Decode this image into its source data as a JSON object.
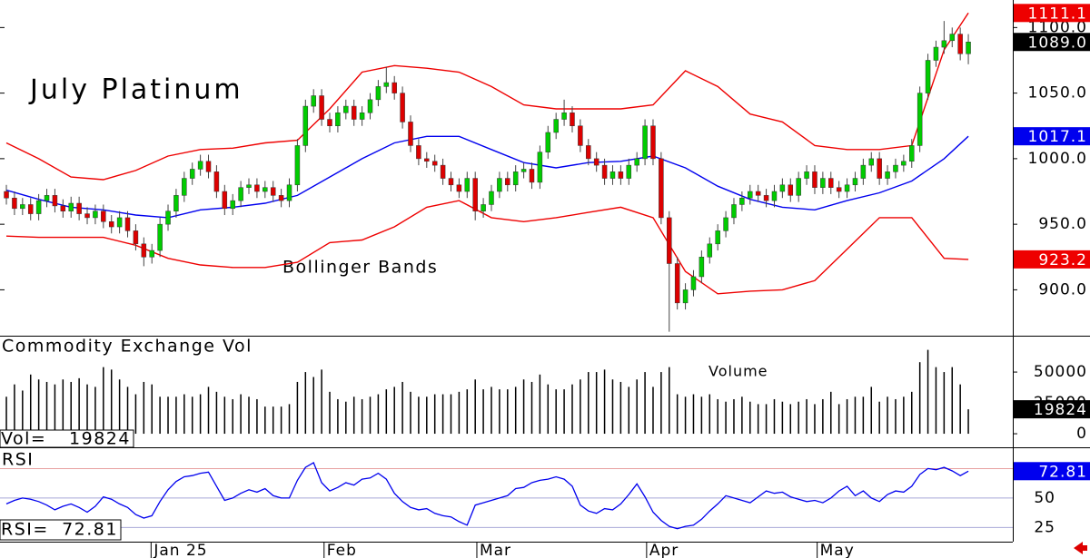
{
  "chart_data": [
    {
      "type": "candlestick",
      "title": "July Platinum",
      "annotation": "Bollinger Bands",
      "x": [
        0,
        1,
        2,
        3,
        4,
        5,
        6,
        7,
        8,
        9,
        10,
        11,
        12,
        13,
        14,
        15,
        16,
        17,
        18,
        19,
        20,
        21,
        22,
        23,
        24,
        25,
        26,
        27,
        28,
        29,
        30,
        31,
        32,
        33,
        34,
        35,
        36,
        37,
        38,
        39,
        40,
        41,
        42,
        43,
        44,
        45,
        46,
        47,
        48,
        49,
        50,
        51,
        52,
        53,
        54,
        55,
        56,
        57,
        58,
        59,
        60,
        61,
        62,
        63,
        64,
        65,
        66,
        67,
        68,
        69,
        70,
        71,
        72,
        73,
        74,
        75,
        76,
        77,
        78,
        79,
        80,
        81,
        82,
        83,
        84,
        85,
        86,
        87,
        88,
        89,
        90,
        91,
        92,
        93,
        94,
        95,
        96,
        97,
        98,
        99,
        100,
        101,
        102,
        103,
        104,
        105,
        106,
        107,
        108,
        109,
        110,
        111,
        112,
        113,
        114,
        115,
        116,
        117,
        118,
        119
      ],
      "open": [
        975,
        970,
        962,
        965,
        958,
        968,
        972,
        964,
        960,
        966,
        958,
        955,
        960,
        952,
        948,
        955,
        945,
        935,
        925,
        930,
        950,
        960,
        972,
        985,
        992,
        998,
        990,
        975,
        962,
        968,
        978,
        980,
        975,
        978,
        972,
        968,
        980,
        1010,
        1040,
        1048,
        1030,
        1025,
        1035,
        1040,
        1030,
        1035,
        1045,
        1055,
        1058,
        1050,
        1028,
        1010,
        1000,
        998,
        995,
        985,
        980,
        975,
        985,
        960,
        965,
        975,
        985,
        980,
        990,
        992,
        982,
        1005,
        1020,
        1030,
        1035,
        1025,
        1010,
        1000,
        995,
        985,
        990,
        985,
        995,
        1000,
        1025,
        1000,
        955,
        920,
        890,
        900,
        910,
        925,
        935,
        945,
        955,
        965,
        970,
        975,
        972,
        968,
        975,
        980,
        972,
        985,
        990,
        978,
        985,
        978,
        975,
        980,
        985,
        995,
        1000,
        985,
        990,
        995,
        998,
        1010,
        1050,
        1075,
        1085,
        1090,
        1095,
        1080
      ],
      "high": [
        980,
        975,
        970,
        970,
        973,
        977,
        977,
        969,
        971,
        971,
        963,
        965,
        965,
        957,
        960,
        960,
        950,
        940,
        935,
        955,
        965,
        977,
        990,
        997,
        1003,
        1003,
        995,
        980,
        973,
        983,
        985,
        985,
        983,
        983,
        977,
        985,
        1015,
        1045,
        1053,
        1053,
        1035,
        1040,
        1045,
        1045,
        1040,
        1050,
        1060,
        1070,
        1063,
        1055,
        1033,
        1015,
        1005,
        1003,
        1000,
        990,
        985,
        990,
        990,
        970,
        980,
        990,
        990,
        995,
        997,
        997,
        1010,
        1025,
        1035,
        1045,
        1040,
        1030,
        1015,
        1005,
        1000,
        995,
        995,
        1000,
        1005,
        1030,
        1030,
        1005,
        960,
        925,
        905,
        915,
        930,
        940,
        950,
        960,
        970,
        975,
        980,
        980,
        977,
        980,
        985,
        985,
        990,
        995,
        995,
        990,
        990,
        983,
        985,
        990,
        1000,
        1005,
        1005,
        995,
        1000,
        1003,
        1015,
        1055,
        1080,
        1090,
        1105,
        1100,
        1100,
        1095
      ],
      "low": [
        965,
        957,
        957,
        953,
        953,
        963,
        959,
        955,
        955,
        953,
        950,
        950,
        947,
        943,
        943,
        940,
        930,
        918,
        920,
        925,
        945,
        955,
        967,
        980,
        987,
        985,
        970,
        957,
        957,
        963,
        973,
        970,
        970,
        967,
        963,
        963,
        975,
        1005,
        1035,
        1025,
        1020,
        1020,
        1030,
        1025,
        1025,
        1030,
        1040,
        1050,
        1045,
        1023,
        1005,
        995,
        993,
        990,
        980,
        975,
        970,
        970,
        953,
        955,
        960,
        970,
        975,
        975,
        985,
        977,
        977,
        1000,
        1015,
        1025,
        1020,
        1005,
        995,
        990,
        980,
        980,
        980,
        980,
        990,
        995,
        995,
        950,
        868,
        885,
        885,
        895,
        905,
        920,
        930,
        940,
        950,
        960,
        965,
        967,
        963,
        963,
        970,
        967,
        967,
        980,
        973,
        973,
        973,
        970,
        970,
        975,
        980,
        990,
        980,
        980,
        985,
        990,
        993,
        1005,
        1045,
        1070,
        1080,
        1085,
        1075,
        1072
      ],
      "close": [
        970,
        962,
        965,
        958,
        968,
        972,
        964,
        960,
        966,
        958,
        955,
        960,
        952,
        948,
        955,
        945,
        935,
        925,
        930,
        950,
        960,
        972,
        985,
        992,
        998,
        990,
        975,
        962,
        968,
        978,
        980,
        975,
        978,
        972,
        968,
        980,
        1010,
        1040,
        1048,
        1030,
        1025,
        1035,
        1040,
        1030,
        1035,
        1045,
        1055,
        1058,
        1050,
        1028,
        1010,
        1000,
        998,
        995,
        985,
        980,
        975,
        985,
        960,
        965,
        975,
        985,
        980,
        990,
        992,
        982,
        1005,
        1020,
        1030,
        1035,
        1025,
        1010,
        1000,
        995,
        985,
        990,
        985,
        995,
        1000,
        1025,
        1000,
        955,
        920,
        890,
        900,
        910,
        925,
        935,
        945,
        955,
        965,
        970,
        975,
        972,
        968,
        975,
        980,
        972,
        985,
        990,
        978,
        985,
        978,
        975,
        980,
        985,
        995,
        1000,
        985,
        990,
        995,
        998,
        1010,
        1050,
        1075,
        1085,
        1090,
        1095,
        1080,
        1089
      ],
      "close_label": "1089.0",
      "up_color": "#00cc00",
      "down_color": "#dd0000",
      "xlim": [
        -0.79,
        124.5
      ],
      "ylim": [
        865,
        1121
      ],
      "yticks": [
        {
          "value": 900,
          "label": "900.0"
        },
        {
          "value": 950,
          "label": "950.0"
        },
        {
          "value": 1000,
          "label": "1000.0"
        },
        {
          "value": 1050,
          "label": "1050.0"
        },
        {
          "value": 1100,
          "label": "1100.0"
        }
      ],
      "bands": {
        "x": [
          0,
          4,
          8,
          12,
          16,
          20,
          24,
          28,
          32,
          36,
          40,
          44,
          48,
          52,
          56,
          60,
          64,
          68,
          72,
          76,
          80,
          84,
          88,
          92,
          96,
          100,
          104,
          108,
          112,
          116,
          119
        ],
        "series": [
          {
            "color": "#ee0000",
            "values": [
              1012,
              1000,
              986,
              984,
              991,
              1002,
              1007,
              1008,
              1012,
              1014,
              1038,
              1066,
              1071,
              1069,
              1066,
              1055,
              1041,
              1038,
              1038,
              1038,
              1041,
              1067,
              1055,
              1034,
              1028,
              1010,
              1007,
              1007,
              1010,
              1083,
              1111.1
            ]
          },
          {
            "color": "#0000ee",
            "values": [
              976,
              969,
              963,
              961,
              957,
              955,
              961,
              963,
              966,
              972,
              986,
              1000,
              1012,
              1017,
              1017,
              1007,
              997,
              993,
              997,
              998,
              1002,
              993,
              979,
              969,
              963,
              961,
              968,
              974,
              983,
              1000,
              1017.1
            ]
          },
          {
            "color": "#ee0000",
            "values": [
              941,
              940,
              940,
              940,
              934,
              924,
              919,
              917,
              917,
              921,
              936,
              938,
              948,
              963,
              968,
              955,
              952,
              955,
              959,
              963,
              955,
              914,
              897,
              899,
              900,
              907,
              931,
              955,
              955,
              924,
              923.2
            ]
          }
        ]
      }
    },
    {
      "type": "bar",
      "title": "Commodity Exchange Vol",
      "annotation": "Volume",
      "readout_label": "Vol=",
      "color": "#000000",
      "values": [
        30000,
        40000,
        35000,
        48000,
        44000,
        42000,
        40000,
        44000,
        42000,
        45000,
        40000,
        38000,
        54000,
        52000,
        44000,
        38000,
        32000,
        42000,
        40000,
        30000,
        30000,
        30000,
        32000,
        30000,
        32000,
        38000,
        34000,
        30000,
        28000,
        32000,
        30000,
        28000,
        22000,
        22000,
        22000,
        24000,
        42000,
        50000,
        46000,
        52000,
        34000,
        28000,
        26000,
        30000,
        28000,
        30000,
        32000,
        36000,
        38000,
        42000,
        34000,
        30000,
        30000,
        32000,
        32000,
        32000,
        34000,
        36000,
        44000,
        36000,
        38000,
        36000,
        36000,
        38000,
        44000,
        42000,
        48000,
        40000,
        36000,
        36000,
        40000,
        44000,
        50000,
        50000,
        52000,
        44000,
        42000,
        38000,
        44000,
        50000,
        38000,
        50000,
        54000,
        32000,
        30000,
        32000,
        30000,
        32000,
        28000,
        26000,
        28000,
        30000,
        26000,
        24000,
        24000,
        28000,
        26000,
        24000,
        26000,
        28000,
        24000,
        28000,
        34000,
        24000,
        28000,
        30000,
        30000,
        38000,
        26000,
        30000,
        28000,
        30000,
        34000,
        58000,
        68000,
        54000,
        50000,
        54000,
        40000,
        19824
      ],
      "ylim": [
        -11000,
        78000
      ],
      "yticks": [
        0,
        25000,
        50000
      ]
    },
    {
      "type": "line",
      "title": "RSI",
      "readout_label": "RSI=",
      "color": "#0000ee",
      "values": [
        45,
        48,
        50,
        49,
        47,
        44,
        40,
        43,
        45,
        42,
        38,
        43,
        51,
        49,
        45,
        42,
        36,
        33,
        35,
        47,
        57,
        64,
        68,
        69,
        71,
        72,
        60,
        48,
        50,
        54,
        57,
        55,
        58,
        52,
        50,
        50,
        65,
        76,
        80,
        63,
        56,
        59,
        63,
        61,
        66,
        67,
        71,
        66,
        54,
        47,
        42,
        40,
        41,
        37,
        35,
        34,
        30,
        27,
        44,
        46,
        48,
        50,
        52,
        58,
        59,
        63,
        65,
        66,
        68,
        66,
        60,
        44,
        39,
        37,
        41,
        40,
        45,
        53,
        62,
        51,
        38,
        31,
        26,
        24,
        26,
        27,
        32,
        39,
        45,
        52,
        50,
        48,
        46,
        51,
        56,
        54,
        55,
        51,
        49,
        47,
        48,
        46,
        50,
        56,
        60,
        52,
        56,
        50,
        47,
        53,
        56,
        55,
        60,
        70,
        75,
        74,
        76,
        73,
        69,
        72.81
      ],
      "ylim": [
        13,
        91.5
      ],
      "yticks": [
        25,
        50
      ],
      "ref_lines": [
        75
      ],
      "xticks": [
        {
          "value": 17.9,
          "label": "Jan 25"
        },
        {
          "value": 39.3,
          "label": "Feb"
        },
        {
          "value": 58.2,
          "label": "Mar"
        },
        {
          "value": 79.2,
          "label": "Apr"
        },
        {
          "value": 100.3,
          "label": "May"
        }
      ]
    }
  ]
}
